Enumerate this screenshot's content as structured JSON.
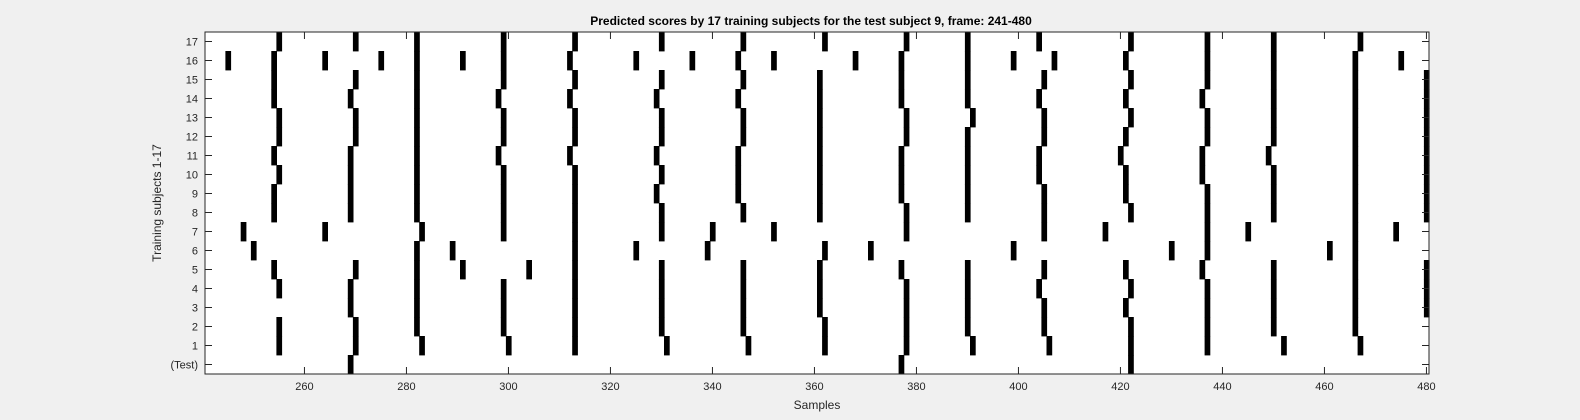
{
  "chart_data": {
    "type": "heatmap",
    "title": "Predicted scores by 17 training subjects for the test subject 9, frame: 241-480",
    "xlabel": "Samples",
    "ylabel": "Training subjects 1-17",
    "xlim": [
      241,
      480
    ],
    "xticks": [
      260,
      280,
      300,
      320,
      340,
      360,
      380,
      400,
      420,
      440,
      460,
      480
    ],
    "y_categories": [
      "(Test)",
      "1",
      "2",
      "3",
      "4",
      "5",
      "6",
      "7",
      "8",
      "9",
      "10",
      "11",
      "12",
      "13",
      "14",
      "15",
      "16",
      "17"
    ],
    "colors": {
      "mark": "#000000",
      "background": "#ffffff",
      "figure": "#f0f0f0"
    },
    "rows": [
      {
        "label": "(Test)",
        "x": [
          269,
          377,
          422
        ]
      },
      {
        "label": "1",
        "x": [
          255,
          270,
          283,
          300,
          313,
          331,
          347,
          362,
          378,
          391,
          406,
          422,
          437,
          452,
          467
        ]
      },
      {
        "label": "2",
        "x": [
          255,
          270,
          282,
          299,
          313,
          330,
          346,
          362,
          378,
          390,
          405,
          422,
          437,
          450,
          466
        ]
      },
      {
        "label": "3",
        "x": [
          269,
          282,
          299,
          313,
          330,
          346,
          361,
          378,
          390,
          405,
          421,
          437,
          450,
          466,
          480
        ]
      },
      {
        "label": "4",
        "x": [
          255,
          269,
          282,
          299,
          313,
          330,
          346,
          361,
          378,
          390,
          404,
          422,
          437,
          450,
          466,
          480
        ]
      },
      {
        "label": "5",
        "x": [
          254,
          270,
          282,
          291,
          304,
          313,
          330,
          346,
          361,
          377,
          390,
          405,
          421,
          436,
          450,
          466,
          480
        ]
      },
      {
        "label": "6",
        "x": [
          250,
          282,
          289,
          313,
          325,
          339,
          362,
          371,
          399,
          430,
          437,
          461,
          466
        ]
      },
      {
        "label": "7",
        "x": [
          248,
          264,
          283,
          299,
          313,
          330,
          340,
          352,
          378,
          405,
          417,
          437,
          445,
          466,
          474
        ]
      },
      {
        "label": "8",
        "x": [
          254,
          269,
          282,
          299,
          313,
          330,
          346,
          361,
          378,
          390,
          405,
          422,
          437,
          450,
          466,
          480
        ]
      },
      {
        "label": "9",
        "x": [
          254,
          269,
          282,
          299,
          313,
          329,
          345,
          361,
          377,
          390,
          405,
          421,
          437,
          450,
          466,
          480
        ]
      },
      {
        "label": "10",
        "x": [
          255,
          269,
          282,
          299,
          313,
          330,
          345,
          361,
          377,
          390,
          404,
          421,
          436,
          450,
          466,
          480
        ]
      },
      {
        "label": "11",
        "x": [
          254,
          269,
          282,
          298,
          312,
          329,
          345,
          361,
          377,
          390,
          404,
          420,
          436,
          449,
          466,
          480
        ]
      },
      {
        "label": "12",
        "x": [
          255,
          270,
          282,
          299,
          313,
          330,
          346,
          361,
          378,
          390,
          405,
          421,
          437,
          450,
          466,
          480
        ]
      },
      {
        "label": "13",
        "x": [
          255,
          270,
          282,
          299,
          313,
          330,
          346,
          361,
          378,
          391,
          405,
          422,
          437,
          450,
          466,
          480
        ]
      },
      {
        "label": "14",
        "x": [
          254,
          269,
          282,
          298,
          312,
          329,
          345,
          361,
          377,
          390,
          404,
          421,
          436,
          450,
          466,
          480
        ]
      },
      {
        "label": "15",
        "x": [
          254,
          270,
          282,
          299,
          313,
          330,
          346,
          361,
          377,
          390,
          405,
          422,
          437,
          450,
          466,
          480
        ]
      },
      {
        "label": "16",
        "x": [
          245,
          254,
          264,
          275,
          282,
          291,
          299,
          312,
          325,
          336,
          345,
          352,
          368,
          377,
          390,
          399,
          407,
          421,
          437,
          450,
          466,
          475
        ]
      },
      {
        "label": "17",
        "x": [
          255,
          270,
          282,
          299,
          313,
          330,
          346,
          362,
          378,
          390,
          404,
          422,
          437,
          450,
          467
        ]
      }
    ]
  }
}
